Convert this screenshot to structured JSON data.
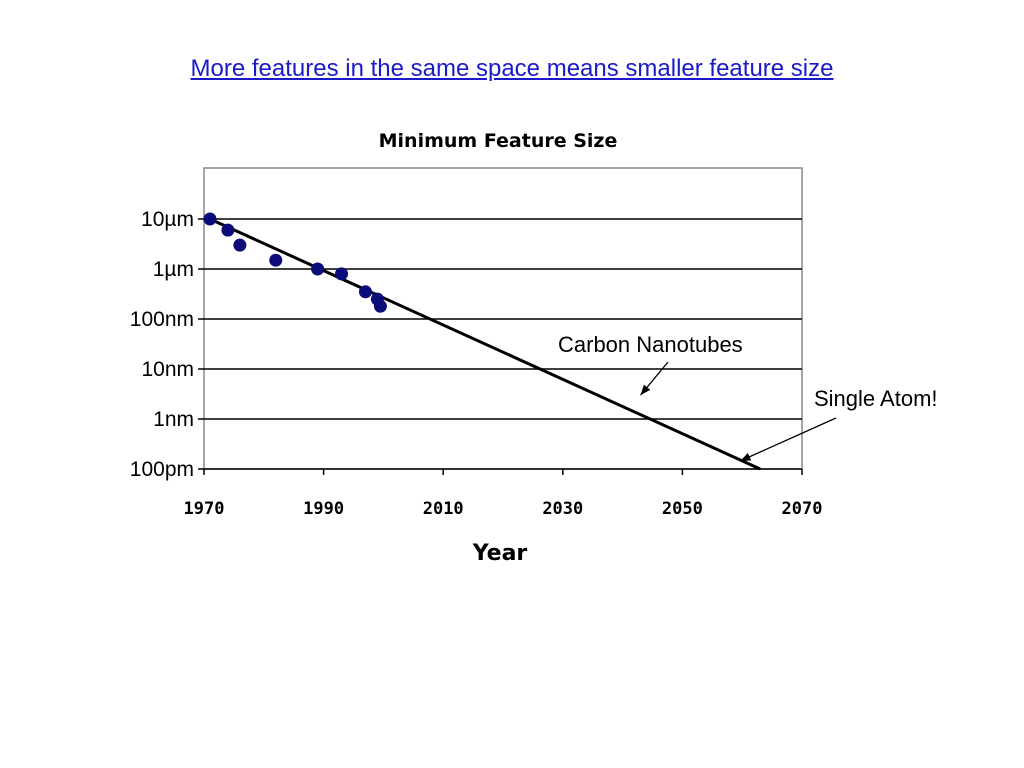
{
  "slide": {
    "title": "More features in the same space means smaller feature size"
  },
  "chart_data": {
    "type": "scatter",
    "title": "Minimum Feature Size",
    "xlabel": "Year",
    "ylabel": "",
    "xlim": [
      1970,
      2070
    ],
    "y_scale": "log",
    "ylim_meters": [
      1e-10,
      0.0001
    ],
    "grid": "horizontal",
    "x_ticks": [
      "1970",
      "1990",
      "2010",
      "2030",
      "2050",
      "2070"
    ],
    "y_ticks": [
      {
        "label": "10µm",
        "value_m": 1e-05
      },
      {
        "label": "1µm",
        "value_m": 1e-06
      },
      {
        "label": "100nm",
        "value_m": 1e-07
      },
      {
        "label": "10nm",
        "value_m": 1e-08
      },
      {
        "label": "1nm",
        "value_m": 1e-09
      },
      {
        "label": "100pm",
        "value_m": 1e-10
      }
    ],
    "series": [
      {
        "type": "scatter",
        "color": "#0b0b7a",
        "points": [
          {
            "x": 1971,
            "y_m": 1e-05
          },
          {
            "x": 1974,
            "y_m": 6e-06
          },
          {
            "x": 1976,
            "y_m": 3e-06
          },
          {
            "x": 1982,
            "y_m": 1.5e-06
          },
          {
            "x": 1989,
            "y_m": 1e-06
          },
          {
            "x": 1993,
            "y_m": 8e-07
          },
          {
            "x": 1997,
            "y_m": 3.5e-07
          },
          {
            "x": 1999,
            "y_m": 2.5e-07
          },
          {
            "x": 1999.5,
            "y_m": 1.8e-07
          }
        ]
      },
      {
        "type": "line",
        "color": "#000000",
        "points": [
          {
            "x": 1971,
            "y_m": 1e-05
          },
          {
            "x": 2063,
            "y_m": 1e-10
          }
        ]
      }
    ],
    "annotations": [
      {
        "text": "Carbon Nanotubes",
        "x": 2043,
        "y_m": 3e-09
      },
      {
        "text": "Single Atom!",
        "x": 2060,
        "y_m": 2e-10
      }
    ]
  }
}
